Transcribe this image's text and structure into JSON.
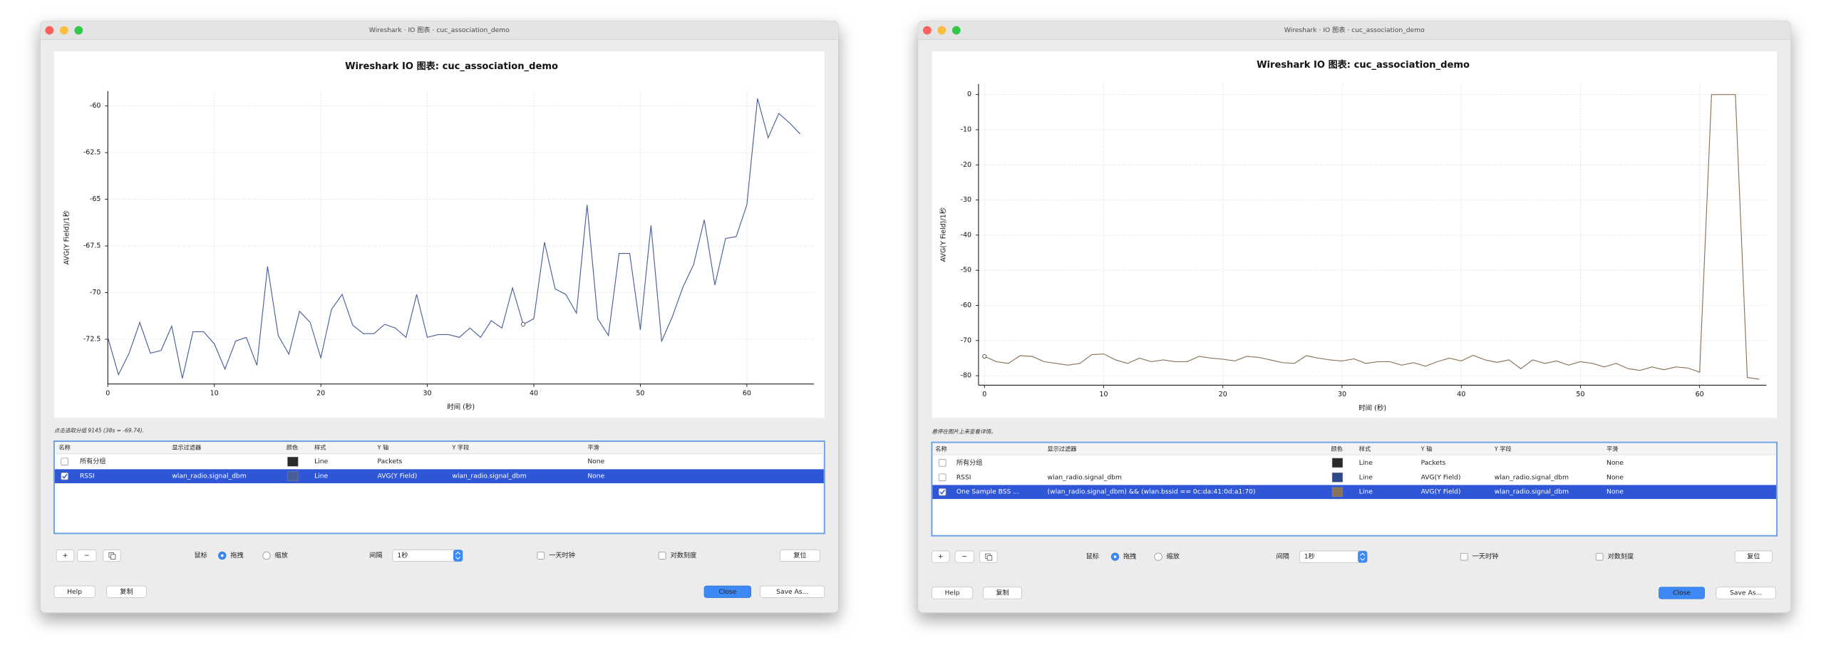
{
  "windows": [
    {
      "title": "Wireshark · IO 图表 · cuc_association_demo",
      "status": "点击选取分组 9145 (38s = -69.74).",
      "table": {
        "headers": [
          "名称",
          "显示过滤器",
          "颜色",
          "样式",
          "Y 轴",
          "Y 字段",
          "平滑"
        ],
        "rows": [
          {
            "checked": false,
            "name": "所有分组",
            "color": "#2b2b2b",
            "style": "Line",
            "y_axis": "Packets",
            "smoothing": "None"
          },
          {
            "checked": true,
            "selected": true,
            "name": "RSSI",
            "filter": "wlan_radio.signal_dbm",
            "color": "#4a5f9a",
            "style": "Line",
            "y_axis": "AVG(Y Field)",
            "y_field": "wlan_radio.signal_dbm",
            "smoothing": "None"
          }
        ]
      },
      "controls": {
        "plus": "+",
        "minus": "−",
        "mouse_label": "鼠标",
        "drag": "拖拽",
        "zoom": "缩放",
        "interval_label": "间隔",
        "interval": "1秒",
        "day_clock": "一天时钟",
        "log_scale": "对数刻度",
        "reset": "复位",
        "help": "Help",
        "copy": "复制",
        "close": "Close",
        "save_as": "Save As..."
      }
    },
    {
      "title": "Wireshark · IO 图表 · cuc_association_demo",
      "status": "悬停在图片上来查看详情。",
      "table": {
        "headers": [
          "名称",
          "显示过滤器",
          "颜色",
          "样式",
          "Y 轴",
          "Y 字段",
          "平滑"
        ],
        "rows": [
          {
            "checked": false,
            "name": "所有分组",
            "color": "#2b2b2b",
            "style": "Line",
            "y_axis": "Packets",
            "smoothing": "None"
          },
          {
            "checked": false,
            "name": "RSSI",
            "filter": "wlan_radio.signal_dbm",
            "color": "#2f4a8a",
            "style": "Line",
            "y_axis": "AVG(Y Field)",
            "y_field": "wlan_radio.signal_dbm",
            "smoothing": "None"
          },
          {
            "checked": true,
            "selected": true,
            "name": "One Sample BSS ...",
            "filter": "(wlan_radio.signal_dbm) && (wlan.bssid == 0c:da:41:0d:a1:70)",
            "color": "#8b7355",
            "style": "Line",
            "y_axis": "AVG(Y Field)",
            "y_field": "wlan_radio.signal_dbm",
            "smoothing": "None"
          }
        ]
      },
      "controls": {
        "plus": "+",
        "minus": "−",
        "mouse_label": "鼠标",
        "drag": "拖拽",
        "zoom": "缩放",
        "interval_label": "间隔",
        "interval": "1秒",
        "day_clock": "一天时钟",
        "log_scale": "对数刻度",
        "reset": "复位",
        "help": "Help",
        "copy": "复制",
        "close": "Close",
        "save_as": "Save As..."
      }
    }
  ],
  "chart_data": [
    {
      "type": "line",
      "title": "Wireshark IO 图表: cuc_association_demo",
      "x_label": "时间 (秒)",
      "y_label": "AVG(Y Field)/1秒",
      "grid": true,
      "x": [
        0,
        1,
        2,
        3,
        4,
        5,
        6,
        7,
        8,
        9,
        10,
        11,
        12,
        13,
        14,
        15,
        16,
        17,
        18,
        19,
        20,
        21,
        22,
        23,
        24,
        25,
        26,
        27,
        28,
        29,
        30,
        31,
        32,
        33,
        34,
        35,
        36,
        37,
        38,
        39,
        40,
        41,
        42,
        43,
        44,
        45,
        46,
        47,
        48,
        49,
        50,
        51,
        52,
        53,
        54,
        55,
        56,
        57,
        58,
        59,
        60,
        61,
        62,
        63,
        64,
        65
      ],
      "series": [
        {
          "name": "RSSI",
          "color": "#4a5f9a",
          "values": [
            -72.4,
            -74.4,
            -73.25,
            -71.6,
            -73.25,
            -73.1,
            -71.8,
            -74.6,
            -72.1,
            -72.1,
            -72.75,
            -74.1,
            -72.6,
            -72.4,
            -73.9,
            -68.6,
            -72.3,
            -73.3,
            -71.0,
            -71.6,
            -73.5,
            -70.9,
            -70.1,
            -71.75,
            -72.2,
            -72.2,
            -71.7,
            -71.9,
            -72.4,
            -70.1,
            -72.4,
            -72.25,
            -72.25,
            -72.4,
            -71.9,
            -72.4,
            -71.5,
            -71.9,
            -69.75,
            -71.7,
            -71.4,
            -67.3,
            -69.8,
            -70.1,
            -71.1,
            -65.3,
            -71.4,
            -72.3,
            -67.9,
            -67.9,
            -72.0,
            -66.4,
            -72.6,
            -71.3,
            -69.7,
            -68.5,
            -66.1,
            -69.6,
            -67.1,
            -67.0,
            -65.3,
            -59.6,
            -61.7,
            -60.4,
            -60.9,
            -61.5
          ]
        }
      ],
      "xlim": [
        0,
        66.3
      ],
      "ylim": [
        -74.9,
        -59.2
      ],
      "xticks": [
        0,
        10,
        20,
        30,
        40,
        50,
        60
      ],
      "yticks": [
        -60,
        -62.5,
        -65,
        -67.5,
        -70,
        -72.5
      ]
    },
    {
      "type": "line",
      "title": "Wireshark IO 图表: cuc_association_demo",
      "x_label": "时间 (秒)",
      "y_label": "AVG(Y Field)/1秒",
      "grid": true,
      "x": [
        0,
        1,
        2,
        3,
        4,
        5,
        6,
        7,
        8,
        9,
        10,
        11,
        12,
        13,
        14,
        15,
        16,
        17,
        18,
        19,
        20,
        21,
        22,
        23,
        24,
        25,
        26,
        27,
        28,
        29,
        30,
        31,
        32,
        33,
        34,
        35,
        36,
        37,
        38,
        39,
        40,
        41,
        42,
        43,
        44,
        45,
        46,
        47,
        48,
        49,
        50,
        51,
        52,
        53,
        54,
        55,
        56,
        57,
        58,
        59,
        60,
        61,
        62,
        63,
        64,
        65
      ],
      "series": [
        {
          "name": "One Sample BSS ...",
          "color": "#8b7355",
          "values": [
            -74.5,
            -76,
            -76.5,
            -74.3,
            -74.5,
            -76,
            -76.5,
            -77,
            -76.5,
            -74,
            -73.8,
            -75.5,
            -76.5,
            -75,
            -76,
            -75.5,
            -76,
            -76,
            -74.5,
            -75,
            -75.3,
            -75.8,
            -74.5,
            -74.8,
            -75.5,
            -76.3,
            -76.5,
            -74.3,
            -75,
            -75.5,
            -75.8,
            -75.2,
            -76.5,
            -76,
            -76,
            -77,
            -76.3,
            -77.3,
            -76,
            -75,
            -75.8,
            -74.2,
            -75.5,
            -76.2,
            -75.5,
            -78,
            -75.5,
            -76.5,
            -75.8,
            -77,
            -76,
            -76.5,
            -77.5,
            -76.5,
            -78,
            -78.5,
            -77.5,
            -78.3,
            -77.5,
            -77.8,
            -79,
            0,
            0,
            0,
            -80.5,
            -81
          ]
        }
      ],
      "xlim": [
        -0.5,
        65.6
      ],
      "ylim": [
        -82.7,
        3
      ],
      "xticks": [
        0,
        10,
        20,
        30,
        40,
        50,
        60
      ],
      "yticks": [
        0,
        -10,
        -20,
        -30,
        -40,
        -50,
        -60,
        -70,
        -80
      ]
    }
  ]
}
